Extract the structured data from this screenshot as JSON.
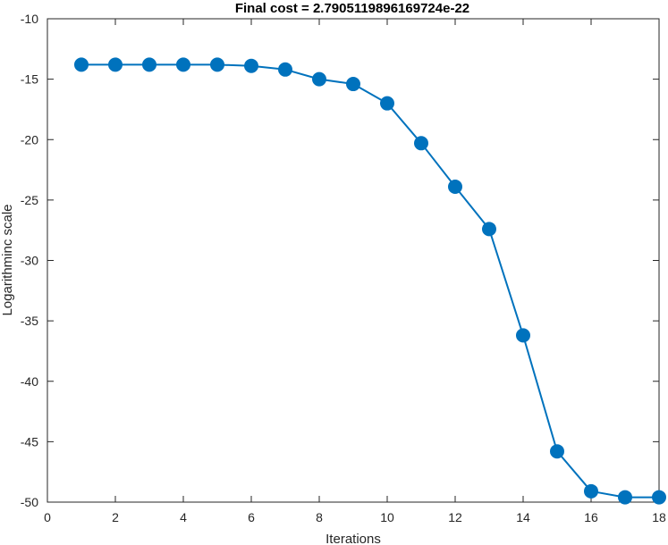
{
  "chart_data": {
    "type": "line",
    "title": "Final cost = 2.7905119896169724e-22",
    "xlabel": "Iterations",
    "ylabel": "Logarithminc scale",
    "xlim": [
      0,
      18
    ],
    "ylim": [
      -50,
      -10
    ],
    "xticks": [
      0,
      2,
      4,
      6,
      8,
      10,
      12,
      14,
      16,
      18
    ],
    "yticks": [
      -10,
      -15,
      -20,
      -25,
      -30,
      -35,
      -40,
      -45,
      -50
    ],
    "grid": false,
    "legend": "none",
    "marker": "filled-circle",
    "series": [
      {
        "color": "#0072BD",
        "x": [
          1,
          2,
          3,
          4,
          5,
          6,
          7,
          8,
          9,
          10,
          11,
          12,
          13,
          14,
          15,
          16,
          17,
          18
        ],
        "y": [
          -13.8,
          -13.8,
          -13.8,
          -13.8,
          -13.8,
          -13.9,
          -14.2,
          -15.0,
          -15.4,
          -17.0,
          -20.3,
          -23.9,
          -27.4,
          -36.2,
          -45.8,
          -49.1,
          -49.6,
          -49.6
        ]
      }
    ]
  }
}
